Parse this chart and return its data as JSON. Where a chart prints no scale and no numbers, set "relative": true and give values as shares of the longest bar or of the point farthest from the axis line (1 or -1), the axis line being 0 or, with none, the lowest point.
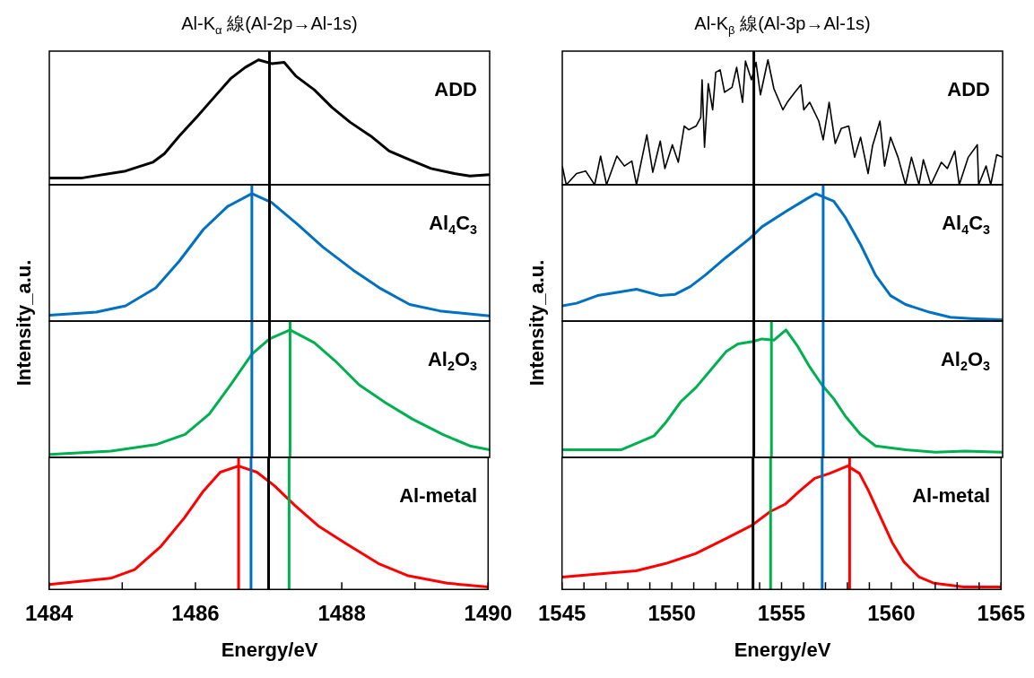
{
  "chart_data": [
    {
      "type": "line",
      "title": "Al-K$_{α}$ 線(Al-2p→Al-1s)",
      "relative": true,
      "xlim": [
        1484,
        1490
      ],
      "tick_labels": false,
      "annotations": [
        "ADD"
      ],
      "x": [
        1484.0,
        1484.43,
        1485.04,
        1485.41,
        1485.57,
        1485.77,
        1486.02,
        1486.26,
        1486.47,
        1486.67,
        1486.85,
        1487.03,
        1487.2,
        1487.36,
        1487.61,
        1487.85,
        1488.1,
        1488.38,
        1488.63,
        1488.91,
        1489.2,
        1489.52,
        1489.73,
        1490.0
      ],
      "series": [
        {
          "color": "#000000",
          "values": [
            0.053,
            0.053,
            0.11,
            0.18,
            0.25,
            0.39,
            0.55,
            0.71,
            0.85,
            0.94,
            1.0,
            0.97,
            0.98,
            0.87,
            0.76,
            0.62,
            0.5,
            0.39,
            0.27,
            0.2,
            0.13,
            0.09,
            0.07,
            0.08
          ]
        }
      ],
      "ref_lines": [
        {
          "axis": "x",
          "value": 1487.0,
          "color": "#000000"
        }
      ]
    },
    {
      "type": "line",
      "ylabel": "Intensity_a.u.",
      "relative": true,
      "xlim": [
        1484,
        1490
      ],
      "tick_labels": false,
      "annotations": [
        "Al$_{4}$C$_{3}$"
      ],
      "x": [
        1484.0,
        1484.64,
        1485.04,
        1485.45,
        1485.77,
        1486.1,
        1486.43,
        1486.76,
        1487.03,
        1487.4,
        1487.73,
        1488.14,
        1488.5,
        1488.91,
        1489.32,
        1490.0
      ],
      "series": [
        {
          "color": "#0070c0",
          "values": [
            0.046,
            0.07,
            0.12,
            0.26,
            0.47,
            0.72,
            0.9,
            1.0,
            0.93,
            0.75,
            0.58,
            0.4,
            0.26,
            0.13,
            0.08,
            0.04
          ]
        }
      ],
      "ref_lines": [
        {
          "axis": "x",
          "value": 1487.0,
          "color": "#000000"
        },
        {
          "axis": "x",
          "value": 1486.76,
          "color": "#0070c0"
        }
      ]
    },
    {
      "type": "line",
      "relative": true,
      "xlim": [
        1484,
        1490
      ],
      "tick_labels": false,
      "annotations": [
        "Al$_{2}$O$_{3}$"
      ],
      "x": [
        1484.0,
        1484.84,
        1485.45,
        1485.85,
        1486.18,
        1486.47,
        1486.76,
        1487.0,
        1487.28,
        1487.61,
        1487.89,
        1488.22,
        1488.58,
        1488.95,
        1489.36,
        1489.73,
        1490.0
      ],
      "series": [
        {
          "color": "#00b050",
          "values": [
            0.023,
            0.05,
            0.1,
            0.18,
            0.34,
            0.57,
            0.81,
            0.93,
            1.0,
            0.9,
            0.76,
            0.57,
            0.43,
            0.3,
            0.18,
            0.09,
            0.06
          ]
        }
      ],
      "ref_lines": [
        {
          "axis": "x",
          "value": 1487.0,
          "color": "#000000"
        },
        {
          "axis": "x",
          "value": 1486.76,
          "color": "#0070c0"
        },
        {
          "axis": "x",
          "value": 1487.28,
          "color": "#00b050"
        }
      ]
    },
    {
      "type": "line",
      "xlabel": "Energy/eV",
      "relative": true,
      "xlim": [
        1484,
        1490
      ],
      "tick_labels": "x",
      "annotations": [
        "Al-metal"
      ],
      "xticks": [
        1484,
        {
          "value": 1485,
          "label": null
        },
        1486,
        {
          "value": 1487,
          "label": null
        },
        1488,
        {
          "value": 1489,
          "label": null
        },
        1490
      ],
      "x": [
        1484.0,
        1484.84,
        1485.17,
        1485.53,
        1485.85,
        1486.1,
        1486.34,
        1486.59,
        1486.84,
        1487.08,
        1487.36,
        1487.69,
        1488.06,
        1488.5,
        1488.91,
        1489.44,
        1490.0
      ],
      "series": [
        {
          "color": "#ff0000",
          "values": [
            0.04,
            0.09,
            0.16,
            0.35,
            0.58,
            0.79,
            0.95,
            1.0,
            0.95,
            0.84,
            0.68,
            0.51,
            0.37,
            0.21,
            0.11,
            0.05,
            0.02
          ]
        }
      ],
      "ref_lines": [
        {
          "axis": "x",
          "value": 1487.0,
          "color": "#000000"
        },
        {
          "axis": "x",
          "value": 1486.76,
          "color": "#0070c0"
        },
        {
          "axis": "x",
          "value": 1487.28,
          "color": "#00b050"
        },
        {
          "axis": "x",
          "value": 1486.59,
          "color": "#ff0000"
        }
      ]
    },
    {
      "type": "line",
      "title": "Al-K$_{β}$ 線(Al-3p→Al-1s)",
      "relative": true,
      "xlim": [
        1545,
        1565
      ],
      "tick_labels": false,
      "annotations": [
        "ADD"
      ],
      "x": [
        1545.0,
        1545.18,
        1545.65,
        1546.06,
        1546.47,
        1546.74,
        1547.01,
        1547.48,
        1547.82,
        1548.16,
        1548.37,
        1548.84,
        1549.11,
        1549.45,
        1549.66,
        1550.0,
        1550.27,
        1550.54,
        1550.74,
        1551.08,
        1551.29,
        1551.35,
        1551.46,
        1551.63,
        1551.83,
        1551.97,
        1552.17,
        1552.37,
        1552.71,
        1552.92,
        1553.19,
        1553.32,
        1553.59,
        1553.8,
        1554.0,
        1554.34,
        1554.61,
        1555.02,
        1555.22,
        1555.56,
        1555.84,
        1555.97,
        1556.24,
        1556.65,
        1556.85,
        1557.12,
        1557.4,
        1557.67,
        1558.01,
        1558.28,
        1558.55,
        1558.89,
        1559.09,
        1559.43,
        1559.64,
        1559.91,
        1560.25,
        1560.59,
        1560.86,
        1561.2,
        1561.4,
        1561.74,
        1562.22,
        1562.49,
        1562.83,
        1563.03,
        1563.44,
        1563.85,
        1563.91,
        1564.25,
        1564.46,
        1564.73,
        1565.0
      ],
      "series": [
        {
          "color": "#000000",
          "values": [
            0.15,
            0,
            0.09,
            0.11,
            0,
            0.23,
            0,
            0.23,
            0.15,
            0.19,
            0,
            0.4,
            0.1,
            0.35,
            0.13,
            0.32,
            0.18,
            0.47,
            0.44,
            0.47,
            0.54,
            0.84,
            0.3,
            0.81,
            0.6,
            0.9,
            0.92,
            0.74,
            0.78,
            0.94,
            0.66,
            0.99,
            0.84,
            0.98,
            0.72,
            1.0,
            0.77,
            0.6,
            0.66,
            0.74,
            0.8,
            0.6,
            0.66,
            0.51,
            0.36,
            0.66,
            0.33,
            0.45,
            0.47,
            0.22,
            0.38,
            0.09,
            0.31,
            0.51,
            0.15,
            0.38,
            0.22,
            0,
            0.22,
            0,
            0.2,
            0,
            0.18,
            0.13,
            0.27,
            0,
            0.22,
            0.32,
            0,
            0.15,
            0,
            0.24,
            0.22
          ]
        }
      ],
      "ref_lines": [
        {
          "axis": "x",
          "value": 1553.7,
          "color": "#000000"
        }
      ]
    },
    {
      "type": "line",
      "ylabel": "Intensity_a.u.",
      "relative": true,
      "xlim": [
        1545,
        1565
      ],
      "tick_labels": false,
      "annotations": [
        "Al$_{4}$C$_{3}$"
      ],
      "x": [
        1545.0,
        1545.65,
        1546.6,
        1547.69,
        1548.37,
        1549.45,
        1550.13,
        1550.81,
        1551.49,
        1552.44,
        1553.53,
        1554.07,
        1555.16,
        1556.11,
        1556.51,
        1557.33,
        1557.87,
        1558.55,
        1559.23,
        1559.91,
        1560.59,
        1561.67,
        1562.62,
        1563.57,
        1565.0
      ],
      "series": [
        {
          "color": "#0070c0",
          "values": [
            0.12,
            0.14,
            0.2,
            0.23,
            0.25,
            0.2,
            0.21,
            0.27,
            0.36,
            0.5,
            0.65,
            0.74,
            0.86,
            0.96,
            1.0,
            0.94,
            0.81,
            0.6,
            0.36,
            0.2,
            0.13,
            0.07,
            0.03,
            0.02,
            0.01
          ]
        }
      ],
      "ref_lines": [
        {
          "axis": "x",
          "value": 1553.7,
          "color": "#000000"
        },
        {
          "axis": "x",
          "value": 1556.85,
          "color": "#0070c0"
        }
      ]
    },
    {
      "type": "line",
      "relative": true,
      "xlim": [
        1545,
        1565
      ],
      "tick_labels": false,
      "annotations": [
        "Al$_{2}$O$_{3}$"
      ],
      "x": [
        1545.0,
        1546.33,
        1547.69,
        1548.37,
        1549.18,
        1549.73,
        1550.4,
        1551.08,
        1551.76,
        1552.44,
        1552.98,
        1553.66,
        1554.07,
        1554.61,
        1555.16,
        1555.7,
        1556.24,
        1556.79,
        1557.33,
        1557.87,
        1558.55,
        1559.23,
        1560.59,
        1561.95,
        1563.3,
        1565.0
      ],
      "series": [
        {
          "color": "#00b050",
          "values": [
            0.06,
            0.06,
            0.06,
            0.11,
            0.17,
            0.28,
            0.44,
            0.55,
            0.69,
            0.83,
            0.89,
            0.91,
            0.93,
            0.92,
            1.0,
            0.87,
            0.71,
            0.57,
            0.46,
            0.32,
            0.18,
            0.09,
            0.06,
            0.04,
            0.05,
            0.04
          ]
        }
      ],
      "ref_lines": [
        {
          "axis": "x",
          "value": 1553.7,
          "color": "#000000"
        },
        {
          "axis": "x",
          "value": 1556.85,
          "color": "#0070c0"
        },
        {
          "axis": "x",
          "value": 1554.5,
          "color": "#00b050"
        }
      ]
    },
    {
      "type": "line",
      "xlabel": "Energy/eV",
      "relative": true,
      "xlim": [
        1545,
        1565
      ],
      "tick_labels": "x",
      "annotations": [
        "Al-metal"
      ],
      "xticks": [
        1545,
        {
          "value": 1546,
          "label": null
        },
        {
          "value": 1547,
          "label": null
        },
        {
          "value": 1548,
          "label": null
        },
        {
          "value": 1549,
          "label": null
        },
        1550,
        {
          "value": 1551,
          "label": null
        },
        {
          "value": 1552,
          "label": null
        },
        {
          "value": 1553,
          "label": null
        },
        {
          "value": 1554,
          "label": null
        },
        1555,
        {
          "value": 1556,
          "label": null
        },
        {
          "value": 1557,
          "label": null
        },
        {
          "value": 1558,
          "label": null
        },
        {
          "value": 1559,
          "label": null
        },
        1560,
        {
          "value": 1561,
          "label": null
        },
        {
          "value": 1562,
          "label": null
        },
        {
          "value": 1563,
          "label": null
        },
        {
          "value": 1564,
          "label": null
        },
        1565
      ],
      "x": [
        1545.0,
        1547.01,
        1548.37,
        1549.73,
        1551.08,
        1552.44,
        1553.66,
        1554.48,
        1555.16,
        1555.84,
        1556.51,
        1557.19,
        1558.01,
        1558.55,
        1558.96,
        1559.5,
        1560.04,
        1560.59,
        1561.27,
        1561.95,
        1563.3,
        1565.0
      ],
      "series": [
        {
          "color": "#ff0000",
          "values": [
            0.1,
            0.13,
            0.15,
            0.21,
            0.29,
            0.41,
            0.52,
            0.63,
            0.69,
            0.8,
            0.9,
            0.94,
            1.0,
            0.94,
            0.8,
            0.59,
            0.38,
            0.22,
            0.1,
            0.05,
            0.02,
            0.02
          ]
        }
      ],
      "ref_lines": [
        {
          "axis": "x",
          "value": 1553.7,
          "color": "#000000"
        },
        {
          "axis": "x",
          "value": 1556.85,
          "color": "#0070c0"
        },
        {
          "axis": "x",
          "value": 1554.5,
          "color": "#00b050"
        },
        {
          "axis": "x",
          "value": 1558.1,
          "color": "#ff0000"
        }
      ]
    }
  ]
}
